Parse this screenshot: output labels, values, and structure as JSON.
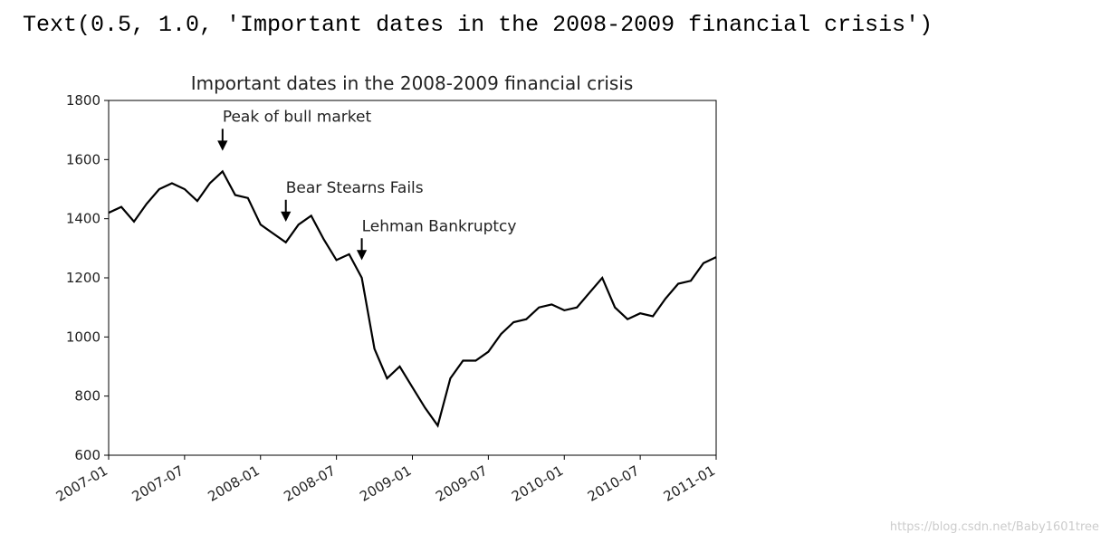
{
  "output_text": "Text(0.5, 1.0, 'Important dates in the 2008-2009 financial crisis')",
  "watermark": "https://blog.csdn.net/Baby1601tree",
  "chart_data": {
    "type": "line",
    "title": "Important dates in the 2008-2009 financial crisis",
    "color": "#000000",
    "x": [
      "2007-01",
      "2007-02",
      "2007-03",
      "2007-04",
      "2007-05",
      "2007-06",
      "2007-07",
      "2007-08",
      "2007-09",
      "2007-10",
      "2007-11",
      "2007-12",
      "2008-01",
      "2008-02",
      "2008-03",
      "2008-04",
      "2008-05",
      "2008-06",
      "2008-07",
      "2008-08",
      "2008-09",
      "2008-10",
      "2008-11",
      "2008-12",
      "2009-01",
      "2009-02",
      "2009-03",
      "2009-04",
      "2009-05",
      "2009-06",
      "2009-07",
      "2009-08",
      "2009-09",
      "2009-10",
      "2009-11",
      "2009-12",
      "2010-01",
      "2010-02",
      "2010-03",
      "2010-04",
      "2010-05",
      "2010-06",
      "2010-07",
      "2010-08",
      "2010-09",
      "2010-10",
      "2010-11",
      "2010-12",
      "2011-01"
    ],
    "values": [
      1420,
      1440,
      1390,
      1450,
      1500,
      1520,
      1500,
      1460,
      1520,
      1560,
      1480,
      1470,
      1380,
      1350,
      1320,
      1380,
      1410,
      1330,
      1260,
      1280,
      1200,
      960,
      860,
      900,
      830,
      760,
      700,
      860,
      920,
      920,
      950,
      1010,
      1050,
      1060,
      1100,
      1110,
      1090,
      1100,
      1150,
      1200,
      1100,
      1060,
      1080,
      1070,
      1130,
      1180,
      1190,
      1250,
      1270
    ],
    "xlim": [
      "2007-01",
      "2011-01"
    ],
    "xticks": [
      "2007-01",
      "2007-07",
      "2008-01",
      "2008-07",
      "2009-01",
      "2009-07",
      "2010-01",
      "2010-07",
      "2011-01"
    ],
    "ylim": [
      600,
      1800
    ],
    "yticks": [
      600,
      800,
      1000,
      1200,
      1400,
      1600,
      1800
    ],
    "annotations": [
      {
        "text": "Peak of bull market",
        "x": "2007-10",
        "y": 1560
      },
      {
        "text": "Bear Stearns Fails",
        "x": "2008-03",
        "y": 1320
      },
      {
        "text": "Lehman Bankruptcy",
        "x": "2008-09",
        "y": 1190
      }
    ]
  }
}
